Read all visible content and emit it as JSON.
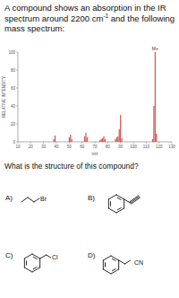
{
  "question": {
    "text_before": "A compound shows an absorption in the IR spectrum around 2200 cm",
    "superscript": "-1",
    "text_after": " and the following mass spectrum:"
  },
  "chart_data": {
    "type": "bar",
    "x_label": "m/z",
    "y_label": "RELATIVE INTENSITY",
    "x": [
      38,
      39,
      50,
      51,
      52,
      62,
      63,
      64,
      74,
      75,
      76,
      77,
      78,
      86,
      87,
      88,
      89,
      90,
      91,
      115,
      116,
      117,
      118
    ],
    "values": [
      3,
      7,
      5,
      8,
      3,
      6,
      10,
      5,
      2,
      3,
      4,
      6,
      3,
      3,
      5,
      6,
      14,
      30,
      4,
      3,
      40,
      100,
      9
    ],
    "color": "#d9534f",
    "xlim": [
      10,
      130
    ],
    "xticks": [
      10,
      20,
      30,
      40,
      50,
      60,
      70,
      80,
      90,
      100,
      110,
      120,
      130
    ],
    "ylim": [
      0,
      100
    ],
    "yticks": [
      0,
      20,
      40,
      60,
      80,
      100
    ],
    "annotation": {
      "text": "M+",
      "x": 117
    }
  },
  "prompt": "What is the structure of this compound?",
  "options": [
    {
      "letter": "A)",
      "label": "Br"
    },
    {
      "letter": "B)"
    },
    {
      "letter": "C)",
      "label": "Cl"
    },
    {
      "letter": "D)",
      "label": "CN"
    }
  ]
}
